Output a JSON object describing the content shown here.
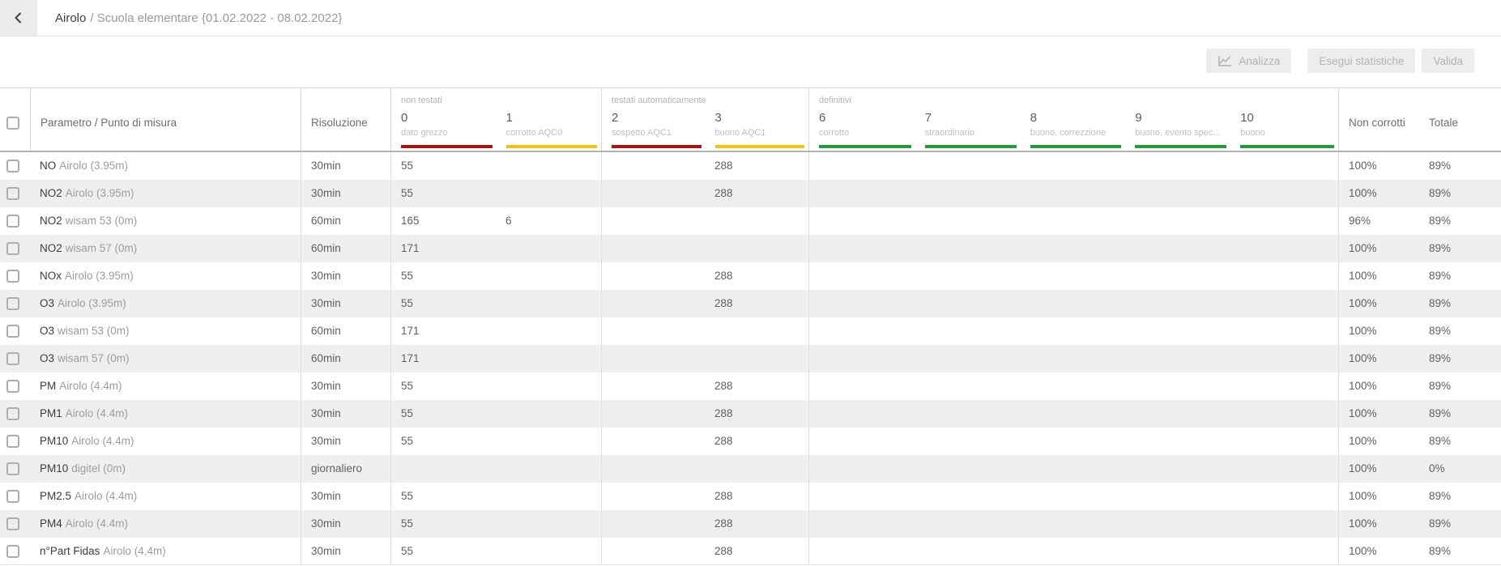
{
  "topbar": {
    "back_icon": "chevron-left-icon",
    "station": "Airolo",
    "subtitle": "/ Scuola elementare {01.02.2022 - 08.02.2022}"
  },
  "toolbar": {
    "analizza_icon": "line-chart-icon",
    "analizza_label": "Analizza",
    "esegui_label": "Esegui statistiche",
    "valida_label": "Valida"
  },
  "colors": {
    "bar_red": "#b01212",
    "bar_yellow": "#f4c20e",
    "bar_green": "#219b3c"
  },
  "table": {
    "headers": {
      "param": "Parametro / Punto di misura",
      "risoluzione": "Risoluzione",
      "non_corrotti": "Non corrotti",
      "totale": "Totale"
    },
    "groups": [
      {
        "label": "non testati",
        "cols": [
          {
            "num": "0",
            "sub": "dato grezzo",
            "color": "#b01212"
          },
          {
            "num": "1",
            "sub": "corrotto AQC0",
            "color": "#f4c20e"
          }
        ]
      },
      {
        "label": "testati automaticamente",
        "cols": [
          {
            "num": "2",
            "sub": "sospetto AQC1",
            "color": "#b01212"
          },
          {
            "num": "3",
            "sub": "buono AQC1",
            "color": "#f4c20e"
          }
        ]
      },
      {
        "label": "definitivi",
        "cols": [
          {
            "num": "6",
            "sub": "corrotto",
            "color": "#219b3c"
          },
          {
            "num": "7",
            "sub": "straordinario",
            "color": "#219b3c"
          },
          {
            "num": "8",
            "sub": "buono, correzzione",
            "color": "#219b3c"
          },
          {
            "num": "9",
            "sub": "buono, evento spec...",
            "color": "#219b3c"
          },
          {
            "num": "10",
            "sub": "buono",
            "color": "#219b3c"
          }
        ]
      }
    ],
    "rows": [
      {
        "param": "NO",
        "location": "Airolo (3.95m)",
        "risoluzione": "30min",
        "v0": "55",
        "v1": "",
        "v2": "",
        "v3": "288",
        "v6": "",
        "v7": "",
        "v8": "",
        "v9": "",
        "v10": "",
        "non_corrotti": "100%",
        "totale": "89%"
      },
      {
        "param": "NO2",
        "location": "Airolo (3.95m)",
        "risoluzione": "30min",
        "v0": "55",
        "v1": "",
        "v2": "",
        "v3": "288",
        "v6": "",
        "v7": "",
        "v8": "",
        "v9": "",
        "v10": "",
        "non_corrotti": "100%",
        "totale": "89%"
      },
      {
        "param": "NO2",
        "location": "wisam 53 (0m)",
        "risoluzione": "60min",
        "v0": "165",
        "v1": "6",
        "v2": "",
        "v3": "",
        "v6": "",
        "v7": "",
        "v8": "",
        "v9": "",
        "v10": "",
        "non_corrotti": "96%",
        "totale": "89%"
      },
      {
        "param": "NO2",
        "location": "wisam 57 (0m)",
        "risoluzione": "60min",
        "v0": "171",
        "v1": "",
        "v2": "",
        "v3": "",
        "v6": "",
        "v7": "",
        "v8": "",
        "v9": "",
        "v10": "",
        "non_corrotti": "100%",
        "totale": "89%"
      },
      {
        "param": "NOx",
        "location": "Airolo (3.95m)",
        "risoluzione": "30min",
        "v0": "55",
        "v1": "",
        "v2": "",
        "v3": "288",
        "v6": "",
        "v7": "",
        "v8": "",
        "v9": "",
        "v10": "",
        "non_corrotti": "100%",
        "totale": "89%"
      },
      {
        "param": "O3",
        "location": "Airolo (3.95m)",
        "risoluzione": "30min",
        "v0": "55",
        "v1": "",
        "v2": "",
        "v3": "288",
        "v6": "",
        "v7": "",
        "v8": "",
        "v9": "",
        "v10": "",
        "non_corrotti": "100%",
        "totale": "89%"
      },
      {
        "param": "O3",
        "location": "wisam 53 (0m)",
        "risoluzione": "60min",
        "v0": "171",
        "v1": "",
        "v2": "",
        "v3": "",
        "v6": "",
        "v7": "",
        "v8": "",
        "v9": "",
        "v10": "",
        "non_corrotti": "100%",
        "totale": "89%"
      },
      {
        "param": "O3",
        "location": "wisam 57 (0m)",
        "risoluzione": "60min",
        "v0": "171",
        "v1": "",
        "v2": "",
        "v3": "",
        "v6": "",
        "v7": "",
        "v8": "",
        "v9": "",
        "v10": "",
        "non_corrotti": "100%",
        "totale": "89%"
      },
      {
        "param": "PM",
        "location": "Airolo (4.4m)",
        "risoluzione": "30min",
        "v0": "55",
        "v1": "",
        "v2": "",
        "v3": "288",
        "v6": "",
        "v7": "",
        "v8": "",
        "v9": "",
        "v10": "",
        "non_corrotti": "100%",
        "totale": "89%"
      },
      {
        "param": "PM1",
        "location": "Airolo (4.4m)",
        "risoluzione": "30min",
        "v0": "55",
        "v1": "",
        "v2": "",
        "v3": "288",
        "v6": "",
        "v7": "",
        "v8": "",
        "v9": "",
        "v10": "",
        "non_corrotti": "100%",
        "totale": "89%"
      },
      {
        "param": "PM10",
        "location": "Airolo (4.4m)",
        "risoluzione": "30min",
        "v0": "55",
        "v1": "",
        "v2": "",
        "v3": "288",
        "v6": "",
        "v7": "",
        "v8": "",
        "v9": "",
        "v10": "",
        "non_corrotti": "100%",
        "totale": "89%"
      },
      {
        "param": "PM10",
        "location": "digitel (0m)",
        "risoluzione": "giornaliero",
        "v0": "",
        "v1": "",
        "v2": "",
        "v3": "",
        "v6": "",
        "v7": "",
        "v8": "",
        "v9": "",
        "v10": "",
        "non_corrotti": "100%",
        "totale": "0%"
      },
      {
        "param": "PM2.5",
        "location": "Airolo (4.4m)",
        "risoluzione": "30min",
        "v0": "55",
        "v1": "",
        "v2": "",
        "v3": "288",
        "v6": "",
        "v7": "",
        "v8": "",
        "v9": "",
        "v10": "",
        "non_corrotti": "100%",
        "totale": "89%"
      },
      {
        "param": "PM4",
        "location": "Airolo (4.4m)",
        "risoluzione": "30min",
        "v0": "55",
        "v1": "",
        "v2": "",
        "v3": "288",
        "v6": "",
        "v7": "",
        "v8": "",
        "v9": "",
        "v10": "",
        "non_corrotti": "100%",
        "totale": "89%"
      },
      {
        "param": "n°Part Fidas",
        "location": "Airolo (4.4m)",
        "risoluzione": "30min",
        "v0": "55",
        "v1": "",
        "v2": "",
        "v3": "288",
        "v6": "",
        "v7": "",
        "v8": "",
        "v9": "",
        "v10": "",
        "non_corrotti": "100%",
        "totale": "89%"
      }
    ]
  }
}
